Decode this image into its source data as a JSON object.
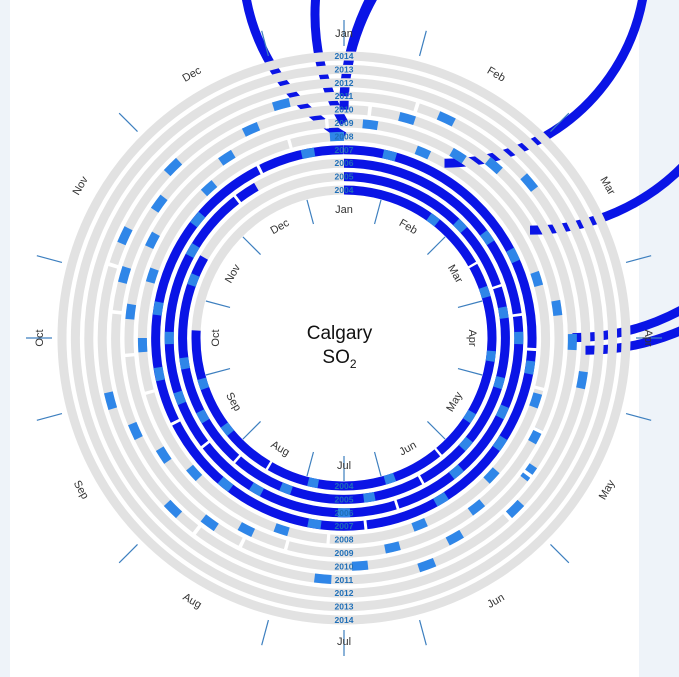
{
  "chart_data": {
    "type": "radial-bar",
    "title": "Calgary",
    "subtitle_main": "SO",
    "subtitle_sub": "2",
    "years": [
      "2004",
      "2005",
      "2006",
      "2007",
      "2008",
      "2009",
      "2010",
      "2011",
      "2012",
      "2013",
      "2014"
    ],
    "inner_month_labels": [
      "Jan",
      "Feb",
      "Mar",
      "Apr",
      "May",
      "Jun",
      "Jul",
      "Aug",
      "Sep",
      "Oct",
      "Nov",
      "Dec"
    ],
    "outer_month_labels": [
      "Jan",
      "Feb",
      "Mar",
      "Apr",
      "May",
      "Jun",
      "Jul",
      "Aug",
      "Sep",
      "Oct",
      "Nov",
      "Dec"
    ],
    "series": [
      {
        "year": "2004",
        "start_month": 1,
        "end_month": 10.1
      },
      {
        "year": "2005",
        "start_month": 1,
        "end_month": 11
      },
      {
        "year": "2006",
        "start_month": 1,
        "end_month": 12
      },
      {
        "year": "2007",
        "start_month": 1,
        "end_month": 13
      },
      {
        "year": "2008",
        "start_month": 1,
        "end_month": 14
      },
      {
        "year": "2009",
        "start_month": 1,
        "end_month": 15
      },
      {
        "year": "2010",
        "start_month": 1,
        "end_month": 16
      },
      {
        "year": "2011",
        "start_month": 1,
        "end_month": 16.1
      },
      {
        "year": "2012",
        "start_month": null,
        "end_month": null
      },
      {
        "year": "2013",
        "start_month": null,
        "end_month": null
      },
      {
        "year": "2014",
        "start_month": null,
        "end_month": null
      }
    ],
    "colors": {
      "data": "#0a14e6",
      "data_light": "#2f86e8",
      "empty_ring": "#e2e2e2",
      "tick": "#3d7fbf",
      "year_label": "#1f6fb8"
    }
  }
}
